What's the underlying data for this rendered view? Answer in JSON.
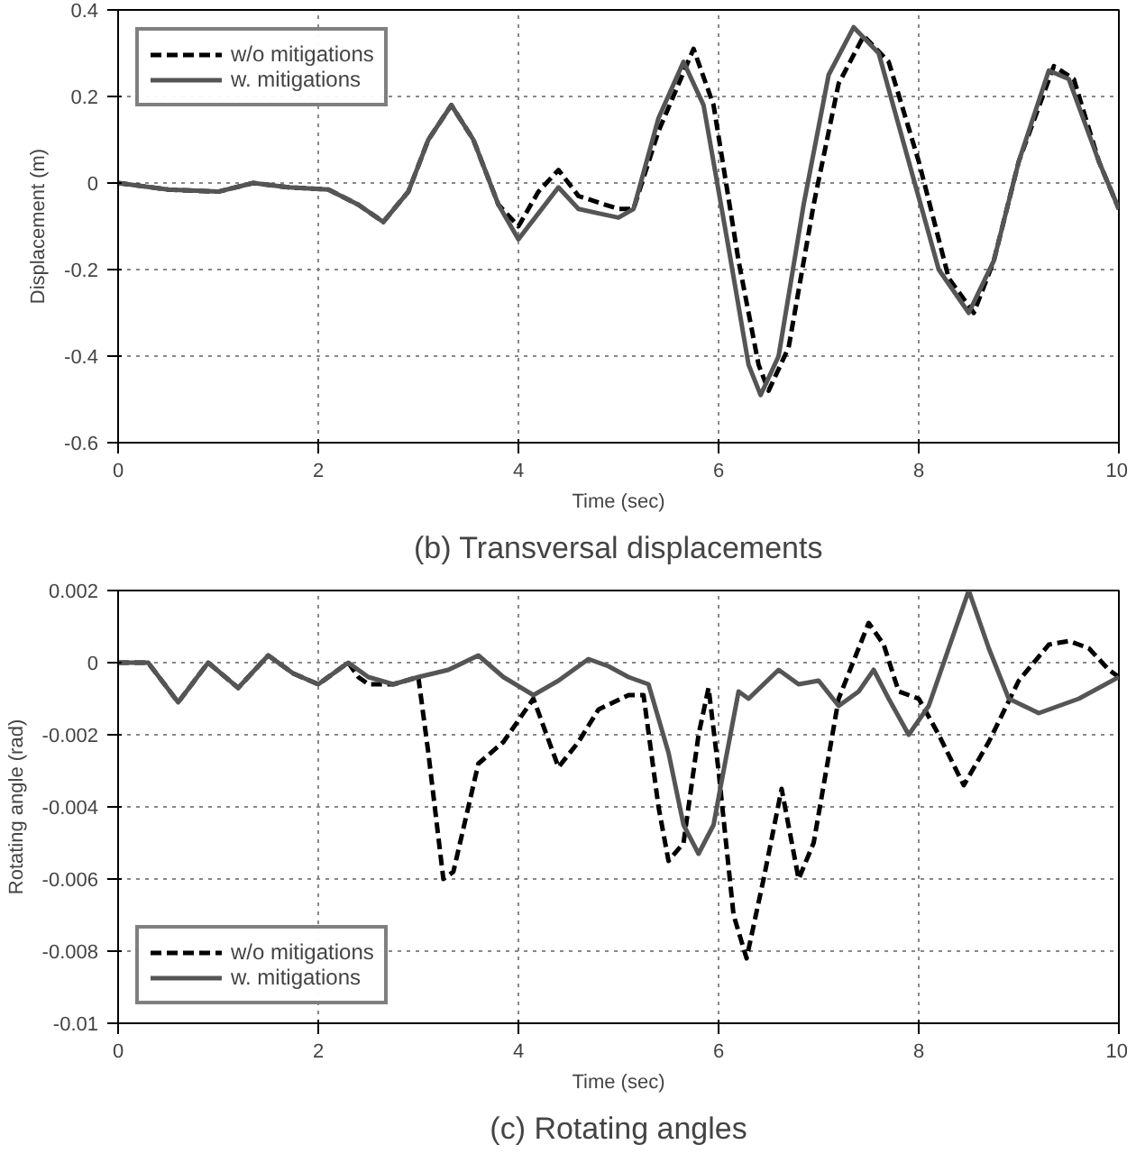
{
  "chart_data": [
    {
      "type": "line",
      "title": "(b) Transversal displacements",
      "xlabel": "Time (sec)",
      "ylabel": "Displacement (m)",
      "xlim": [
        0,
        10
      ],
      "ylim": [
        -0.6,
        0.4
      ],
      "xticks": [
        0,
        2,
        4,
        6,
        8,
        10
      ],
      "yticks": [
        -0.6,
        -0.4,
        -0.2,
        0,
        0.2,
        0.4
      ],
      "grid": true,
      "legend": "top left",
      "series": [
        {
          "name": "w/o mitigations",
          "color": "#000000",
          "line_style": "dashed",
          "x": [
            0,
            0.5,
            1,
            1.35,
            1.7,
            2.1,
            2.4,
            2.65,
            2.9,
            3.1,
            3.33,
            3.55,
            3.8,
            4.0,
            4.2,
            4.4,
            4.6,
            4.8,
            5.0,
            5.15,
            5.4,
            5.75,
            5.95,
            6.2,
            6.4,
            6.5,
            6.7,
            6.95,
            7.2,
            7.45,
            7.7,
            8.0,
            8.3,
            8.55,
            8.75,
            9.0,
            9.35,
            9.55,
            9.8,
            10
          ],
          "values": [
            0,
            -0.015,
            -0.02,
            0,
            -0.01,
            -0.015,
            -0.05,
            -0.09,
            -0.02,
            0.1,
            0.18,
            0.1,
            -0.05,
            -0.1,
            -0.02,
            0.03,
            -0.03,
            -0.045,
            -0.06,
            -0.06,
            0.12,
            0.31,
            0.18,
            -0.18,
            -0.42,
            -0.48,
            -0.38,
            -0.05,
            0.23,
            0.34,
            0.28,
            0.05,
            -0.22,
            -0.3,
            -0.18,
            0.05,
            0.27,
            0.24,
            0.05,
            -0.06
          ]
        },
        {
          "name": "w. mitigations",
          "color": "#555555",
          "line_style": "solid",
          "x": [
            0,
            0.5,
            1,
            1.35,
            1.7,
            2.1,
            2.4,
            2.65,
            2.9,
            3.1,
            3.33,
            3.55,
            3.8,
            4.0,
            4.2,
            4.4,
            4.6,
            4.8,
            5.0,
            5.15,
            5.4,
            5.65,
            5.85,
            6.1,
            6.3,
            6.42,
            6.6,
            6.85,
            7.1,
            7.35,
            7.6,
            7.9,
            8.2,
            8.5,
            8.75,
            9.0,
            9.3,
            9.5,
            9.8,
            10
          ],
          "values": [
            0,
            -0.015,
            -0.02,
            0,
            -0.01,
            -0.015,
            -0.05,
            -0.09,
            -0.02,
            0.1,
            0.18,
            0.1,
            -0.05,
            -0.13,
            -0.07,
            -0.01,
            -0.06,
            -0.07,
            -0.08,
            -0.06,
            0.15,
            0.28,
            0.18,
            -0.15,
            -0.42,
            -0.49,
            -0.4,
            -0.05,
            0.25,
            0.36,
            0.3,
            0.05,
            -0.2,
            -0.3,
            -0.18,
            0.05,
            0.26,
            0.24,
            0.05,
            -0.06
          ]
        }
      ]
    },
    {
      "type": "line",
      "title": "(c) Rotating angles",
      "xlabel": "Time (sec)",
      "ylabel": "Rotating angle (rad)",
      "xlim": [
        0,
        10
      ],
      "ylim": [
        -0.01,
        0.002
      ],
      "xticks": [
        0,
        2,
        4,
        6,
        8,
        10
      ],
      "yticks": [
        -0.01,
        -0.008,
        -0.006,
        -0.004,
        -0.002,
        0,
        0.002
      ],
      "grid": true,
      "legend": "bottom left",
      "series": [
        {
          "name": "w/o mitigations",
          "color": "#000000",
          "line_style": "dashed",
          "x": [
            0,
            0.3,
            0.6,
            0.9,
            1.2,
            1.5,
            1.75,
            2.0,
            2.3,
            2.4,
            2.5,
            2.75,
            3.0,
            3.1,
            3.25,
            3.35,
            3.6,
            3.85,
            4.15,
            4.4,
            4.6,
            4.8,
            5.1,
            5.25,
            5.4,
            5.5,
            5.65,
            5.8,
            5.9,
            6.0,
            6.15,
            6.28,
            6.45,
            6.63,
            6.8,
            6.95,
            7.2,
            7.5,
            7.65,
            7.8,
            8.0,
            8.2,
            8.45,
            8.7,
            9.0,
            9.3,
            9.5,
            9.7,
            9.9,
            10
          ],
          "values": [
            0,
            0,
            -0.0011,
            0,
            -0.0007,
            0.0002,
            -0.0003,
            -0.0006,
            0,
            -0.0004,
            -0.0006,
            -0.0006,
            -0.0004,
            -0.0025,
            -0.006,
            -0.0058,
            -0.0028,
            -0.0022,
            -0.001,
            -0.0029,
            -0.0022,
            -0.0013,
            -0.0009,
            -0.0009,
            -0.004,
            -0.0055,
            -0.005,
            -0.002,
            -0.0007,
            -0.003,
            -0.007,
            -0.0082,
            -0.006,
            -0.0035,
            -0.006,
            -0.005,
            -0.001,
            0.0011,
            0.0005,
            -0.0008,
            -0.001,
            -0.002,
            -0.0034,
            -0.0022,
            -0.0005,
            0.0005,
            0.0006,
            0.0004,
            -0.0002,
            -0.0004
          ]
        },
        {
          "name": "w. mitigations",
          "color": "#555555",
          "line_style": "solid",
          "x": [
            0,
            0.3,
            0.6,
            0.9,
            1.2,
            1.5,
            1.75,
            2.0,
            2.3,
            2.5,
            2.75,
            3.0,
            3.3,
            3.6,
            3.85,
            4.15,
            4.4,
            4.7,
            4.9,
            5.1,
            5.3,
            5.5,
            5.65,
            5.8,
            5.95,
            6.05,
            6.2,
            6.3,
            6.6,
            6.8,
            7.0,
            7.2,
            7.4,
            7.55,
            7.7,
            7.9,
            8.1,
            8.3,
            8.5,
            8.7,
            8.9,
            9.2,
            9.6,
            10
          ],
          "values": [
            0,
            0,
            -0.0011,
            0,
            -0.0007,
            0.0002,
            -0.0003,
            -0.0006,
            0,
            -0.0004,
            -0.0006,
            -0.0004,
            -0.0002,
            0.0002,
            -0.0004,
            -0.0009,
            -0.0005,
            0.0001,
            -0.0001,
            -0.0004,
            -0.0006,
            -0.0025,
            -0.0045,
            -0.0053,
            -0.0045,
            -0.003,
            -0.0008,
            -0.001,
            -0.0002,
            -0.0006,
            -0.0005,
            -0.0012,
            -0.0008,
            -0.0002,
            -0.001,
            -0.002,
            -0.0012,
            0.0004,
            0.002,
            0.0004,
            -0.001,
            -0.0014,
            -0.001,
            -0.0004
          ]
        }
      ]
    }
  ]
}
